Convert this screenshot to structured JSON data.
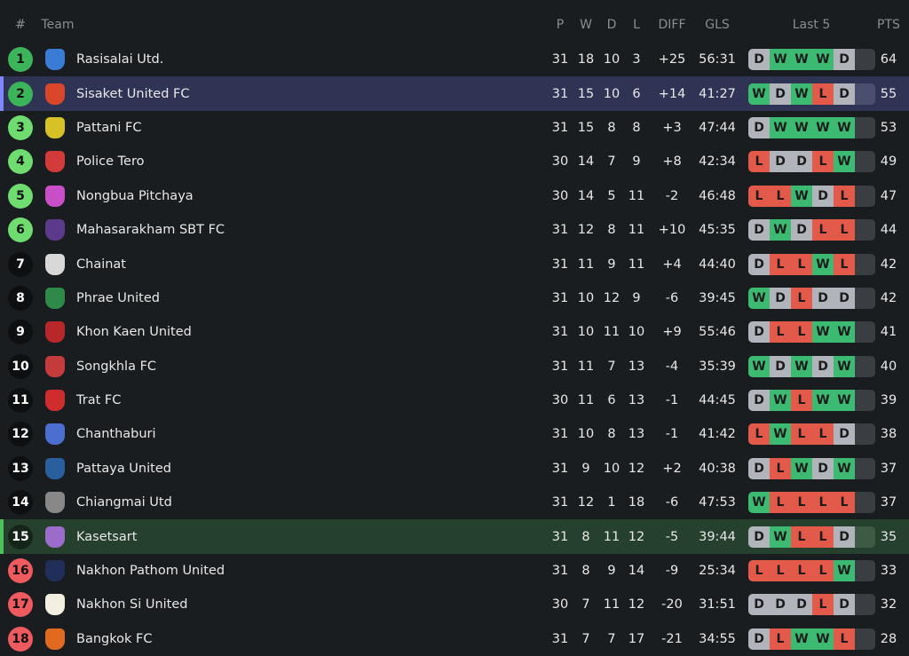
{
  "header": {
    "rank": "#",
    "team": "Team",
    "p": "P",
    "w": "W",
    "d": "D",
    "l": "L",
    "diff": "DIFF",
    "gls": "GLS",
    "last5": "Last 5",
    "pts": "PTS"
  },
  "colors": {
    "promotion": "#3cb55a",
    "playoff": "#6fdc6f",
    "relegation": "#ef5a5f",
    "win": "#3dba72",
    "draw": "#b1b4bb",
    "loss": "#e35a4a",
    "highlight_selected": "#2f3455",
    "highlight_team": "#25402c"
  },
  "rows": [
    {
      "rank": "1",
      "team": "Rasisalai Utd.",
      "p": "31",
      "w": "18",
      "d": "10",
      "l": "3",
      "diff": "+25",
      "gls": "56:31",
      "form": [
        "D",
        "W",
        "W",
        "W",
        "D"
      ],
      "pts": "64",
      "zone": "promotion",
      "logo": "#3a7bd5"
    },
    {
      "rank": "2",
      "team": "Sisaket United FC",
      "p": "31",
      "w": "15",
      "d": "10",
      "l": "6",
      "diff": "+14",
      "gls": "41:27",
      "form": [
        "W",
        "D",
        "W",
        "L",
        "D"
      ],
      "pts": "55",
      "zone": "promotion",
      "logo": "#d9462a",
      "highlight": "blue"
    },
    {
      "rank": "3",
      "team": "Pattani FC",
      "p": "31",
      "w": "15",
      "d": "8",
      "l": "8",
      "diff": "+3",
      "gls": "47:44",
      "form": [
        "D",
        "W",
        "W",
        "W",
        "W"
      ],
      "pts": "53",
      "zone": "playoff",
      "logo": "#d6c227"
    },
    {
      "rank": "4",
      "team": "Police Tero",
      "p": "30",
      "w": "14",
      "d": "7",
      "l": "9",
      "diff": "+8",
      "gls": "42:34",
      "form": [
        "L",
        "D",
        "D",
        "L",
        "W"
      ],
      "pts": "49",
      "zone": "playoff",
      "logo": "#d33a3a"
    },
    {
      "rank": "5",
      "team": "Nongbua Pitchaya",
      "p": "30",
      "w": "14",
      "d": "5",
      "l": "11",
      "diff": "-2",
      "gls": "46:48",
      "form": [
        "L",
        "L",
        "W",
        "D",
        "L"
      ],
      "pts": "47",
      "zone": "playoff",
      "logo": "#c94fc9"
    },
    {
      "rank": "6",
      "team": "Mahasarakham SBT FC",
      "p": "31",
      "w": "12",
      "d": "8",
      "l": "11",
      "diff": "+10",
      "gls": "45:35",
      "form": [
        "D",
        "W",
        "D",
        "L",
        "L"
      ],
      "pts": "44",
      "zone": "playoff",
      "logo": "#5b3a8c"
    },
    {
      "rank": "7",
      "team": "Chainat",
      "p": "31",
      "w": "11",
      "d": "9",
      "l": "11",
      "diff": "+4",
      "gls": "44:40",
      "form": [
        "D",
        "L",
        "L",
        "W",
        "L"
      ],
      "pts": "42",
      "zone": "",
      "logo": "#d8d8d8"
    },
    {
      "rank": "8",
      "team": "Phrae United",
      "p": "31",
      "w": "10",
      "d": "12",
      "l": "9",
      "diff": "-6",
      "gls": "39:45",
      "form": [
        "W",
        "D",
        "L",
        "D",
        "D"
      ],
      "pts": "42",
      "zone": "",
      "logo": "#2f8a4a"
    },
    {
      "rank": "9",
      "team": "Khon Kaen United",
      "p": "31",
      "w": "10",
      "d": "11",
      "l": "10",
      "diff": "+9",
      "gls": "55:46",
      "form": [
        "D",
        "L",
        "L",
        "W",
        "W"
      ],
      "pts": "41",
      "zone": "",
      "logo": "#b8282a"
    },
    {
      "rank": "10",
      "team": "Songkhla FC",
      "p": "31",
      "w": "11",
      "d": "7",
      "l": "13",
      "diff": "-4",
      "gls": "35:39",
      "form": [
        "W",
        "D",
        "W",
        "D",
        "W"
      ],
      "pts": "40",
      "zone": "",
      "logo": "#c43b3b"
    },
    {
      "rank": "11",
      "team": "Trat FC",
      "p": "30",
      "w": "11",
      "d": "6",
      "l": "13",
      "diff": "-1",
      "gls": "44:45",
      "form": [
        "D",
        "W",
        "L",
        "W",
        "W"
      ],
      "pts": "39",
      "zone": "",
      "logo": "#cf2d2d"
    },
    {
      "rank": "12",
      "team": "Chanthaburi",
      "p": "31",
      "w": "10",
      "d": "8",
      "l": "13",
      "diff": "-1",
      "gls": "41:42",
      "form": [
        "L",
        "W",
        "L",
        "L",
        "D"
      ],
      "pts": "38",
      "zone": "",
      "logo": "#4a6fd0"
    },
    {
      "rank": "13",
      "team": "Pattaya United",
      "p": "31",
      "w": "9",
      "d": "10",
      "l": "12",
      "diff": "+2",
      "gls": "40:38",
      "form": [
        "D",
        "L",
        "W",
        "D",
        "W"
      ],
      "pts": "37",
      "zone": "",
      "logo": "#2a5f9e"
    },
    {
      "rank": "14",
      "team": "Chiangmai Utd",
      "p": "31",
      "w": "12",
      "d": "1",
      "l": "18",
      "diff": "-6",
      "gls": "47:53",
      "form": [
        "W",
        "L",
        "L",
        "L",
        "L"
      ],
      "pts": "37",
      "zone": "",
      "logo": "#888888"
    },
    {
      "rank": "15",
      "team": "Kasetsart",
      "p": "31",
      "w": "8",
      "d": "11",
      "l": "12",
      "diff": "-5",
      "gls": "39:44",
      "form": [
        "D",
        "W",
        "L",
        "L",
        "D"
      ],
      "pts": "35",
      "zone": "",
      "logo": "#9b6cc9",
      "highlight": "green"
    },
    {
      "rank": "16",
      "team": "Nakhon Pathom United",
      "p": "31",
      "w": "8",
      "d": "9",
      "l": "14",
      "diff": "-9",
      "gls": "25:34",
      "form": [
        "L",
        "L",
        "L",
        "L",
        "W"
      ],
      "pts": "33",
      "zone": "relegation",
      "logo": "#1f2f5a"
    },
    {
      "rank": "17",
      "team": "Nakhon Si United",
      "p": "30",
      "w": "7",
      "d": "11",
      "l": "12",
      "diff": "-20",
      "gls": "31:51",
      "form": [
        "D",
        "D",
        "D",
        "L",
        "D"
      ],
      "pts": "32",
      "zone": "relegation",
      "logo": "#f3efe0"
    },
    {
      "rank": "18",
      "team": "Bangkok FC",
      "p": "31",
      "w": "7",
      "d": "7",
      "l": "17",
      "diff": "-21",
      "gls": "34:55",
      "form": [
        "D",
        "L",
        "W",
        "W",
        "L"
      ],
      "pts": "28",
      "zone": "relegation",
      "logo": "#e06a1f"
    }
  ]
}
